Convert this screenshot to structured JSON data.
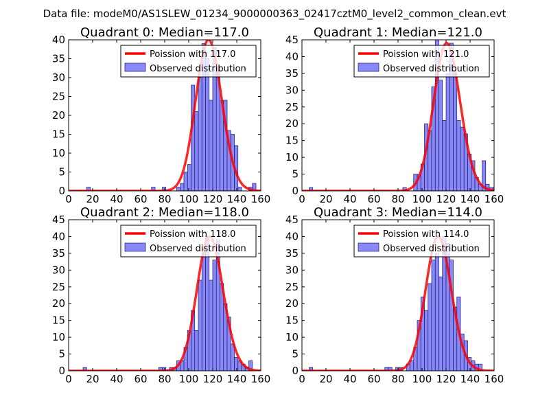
{
  "figure": {
    "title": "Data file: modeM0/AS1SLEW_01234_9000000363_02417cztM0_level2_common_clean.evt"
  },
  "colors": {
    "bar_fill": "#7b7bf5",
    "bar_edge": "#1b1b6e",
    "fit_line": "#ff0000",
    "frame": "#000000",
    "legend_edge": "#000000"
  },
  "chart_data": [
    {
      "type": "histogram",
      "title": "Quadrant 0: Median=117.0",
      "xlim": [
        0,
        160
      ],
      "ylim": [
        0,
        40
      ],
      "xticks": [
        0,
        20,
        40,
        60,
        80,
        100,
        120,
        140,
        160
      ],
      "yticks": [
        0,
        5,
        10,
        15,
        20,
        25,
        30,
        35,
        40
      ],
      "bin_width": 3,
      "bins": [
        [
          15,
          1
        ],
        [
          69,
          1
        ],
        [
          78,
          1
        ],
        [
          90,
          1
        ],
        [
          93,
          2
        ],
        [
          96,
          5
        ],
        [
          99,
          7
        ],
        [
          102,
          28
        ],
        [
          105,
          21
        ],
        [
          108,
          30
        ],
        [
          111,
          39
        ],
        [
          114,
          35
        ],
        [
          117,
          24
        ],
        [
          120,
          38
        ],
        [
          123,
          33
        ],
        [
          126,
          24
        ],
        [
          129,
          24
        ],
        [
          132,
          16
        ],
        [
          135,
          15
        ],
        [
          138,
          12
        ],
        [
          141,
          1
        ],
        [
          150,
          1
        ],
        [
          153,
          2
        ]
      ],
      "fit": {
        "lambda": 117.0,
        "scale": 40
      },
      "legend": {
        "line_label": "Poission with 117.0",
        "bar_label": "Observed distribution"
      }
    },
    {
      "type": "histogram",
      "title": "Quadrant 1: Median=121.0",
      "xlim": [
        0,
        160
      ],
      "ylim": [
        0,
        45
      ],
      "xticks": [
        0,
        20,
        40,
        60,
        80,
        100,
        120,
        140,
        160
      ],
      "yticks": [
        0,
        5,
        10,
        15,
        20,
        25,
        30,
        35,
        40,
        45
      ],
      "bin_width": 3,
      "bins": [
        [
          6,
          1
        ],
        [
          84,
          1
        ],
        [
          93,
          5
        ],
        [
          96,
          5
        ],
        [
          99,
          8
        ],
        [
          102,
          20
        ],
        [
          105,
          18
        ],
        [
          108,
          31
        ],
        [
          111,
          45
        ],
        [
          114,
          33
        ],
        [
          117,
          21
        ],
        [
          120,
          35
        ],
        [
          123,
          44
        ],
        [
          126,
          35
        ],
        [
          129,
          21
        ],
        [
          132,
          19
        ],
        [
          135,
          17
        ],
        [
          138,
          11
        ],
        [
          141,
          9
        ],
        [
          144,
          4
        ],
        [
          147,
          2
        ],
        [
          150,
          9
        ],
        [
          153,
          2
        ],
        [
          156,
          1
        ],
        [
          159,
          1
        ]
      ],
      "fit": {
        "lambda": 121.0,
        "scale": 44
      },
      "legend": {
        "line_label": "Poission with 121.0",
        "bar_label": "Observed distribution"
      }
    },
    {
      "type": "histogram",
      "title": "Quadrant 2: Median=118.0",
      "xlim": [
        0,
        160
      ],
      "ylim": [
        0,
        45
      ],
      "xticks": [
        0,
        20,
        40,
        60,
        80,
        100,
        120,
        140,
        160
      ],
      "yticks": [
        0,
        5,
        10,
        15,
        20,
        25,
        30,
        35,
        40,
        45
      ],
      "bin_width": 3,
      "bins": [
        [
          12,
          1
        ],
        [
          75,
          1
        ],
        [
          78,
          1
        ],
        [
          84,
          1
        ],
        [
          87,
          1
        ],
        [
          90,
          3
        ],
        [
          93,
          3
        ],
        [
          96,
          7
        ],
        [
          99,
          12
        ],
        [
          102,
          18
        ],
        [
          105,
          12
        ],
        [
          108,
          27
        ],
        [
          111,
          35
        ],
        [
          114,
          40
        ],
        [
          117,
          27
        ],
        [
          120,
          33
        ],
        [
          123,
          39
        ],
        [
          126,
          26
        ],
        [
          129,
          20
        ],
        [
          132,
          16
        ],
        [
          135,
          8
        ],
        [
          138,
          4
        ],
        [
          141,
          3
        ],
        [
          144,
          2
        ],
        [
          147,
          1
        ],
        [
          150,
          3
        ]
      ],
      "fit": {
        "lambda": 118.0,
        "scale": 40
      },
      "legend": {
        "line_label": "Poission with 118.0",
        "bar_label": "Observed distribution"
      }
    },
    {
      "type": "histogram",
      "title": "Quadrant 3: Median=114.0",
      "xlim": [
        0,
        160
      ],
      "ylim": [
        0,
        45
      ],
      "xticks": [
        0,
        20,
        40,
        60,
        80,
        100,
        120,
        140,
        160
      ],
      "yticks": [
        0,
        5,
        10,
        15,
        20,
        25,
        30,
        35,
        40,
        45
      ],
      "bin_width": 3,
      "bins": [
        [
          6,
          1
        ],
        [
          69,
          1
        ],
        [
          72,
          1
        ],
        [
          78,
          1
        ],
        [
          81,
          1
        ],
        [
          87,
          2
        ],
        [
          90,
          3
        ],
        [
          93,
          7
        ],
        [
          96,
          15
        ],
        [
          99,
          22
        ],
        [
          102,
          18
        ],
        [
          105,
          26
        ],
        [
          108,
          33
        ],
        [
          111,
          35
        ],
        [
          114,
          28
        ],
        [
          117,
          40
        ],
        [
          120,
          38
        ],
        [
          123,
          33
        ],
        [
          126,
          19
        ],
        [
          129,
          22
        ],
        [
          132,
          11
        ],
        [
          135,
          9
        ],
        [
          138,
          4
        ],
        [
          141,
          3
        ],
        [
          144,
          2
        ],
        [
          147,
          2
        ]
      ],
      "fit": {
        "lambda": 114.0,
        "scale": 40
      },
      "legend": {
        "line_label": "Poission with 114.0",
        "bar_label": "Observed distribution"
      }
    }
  ]
}
